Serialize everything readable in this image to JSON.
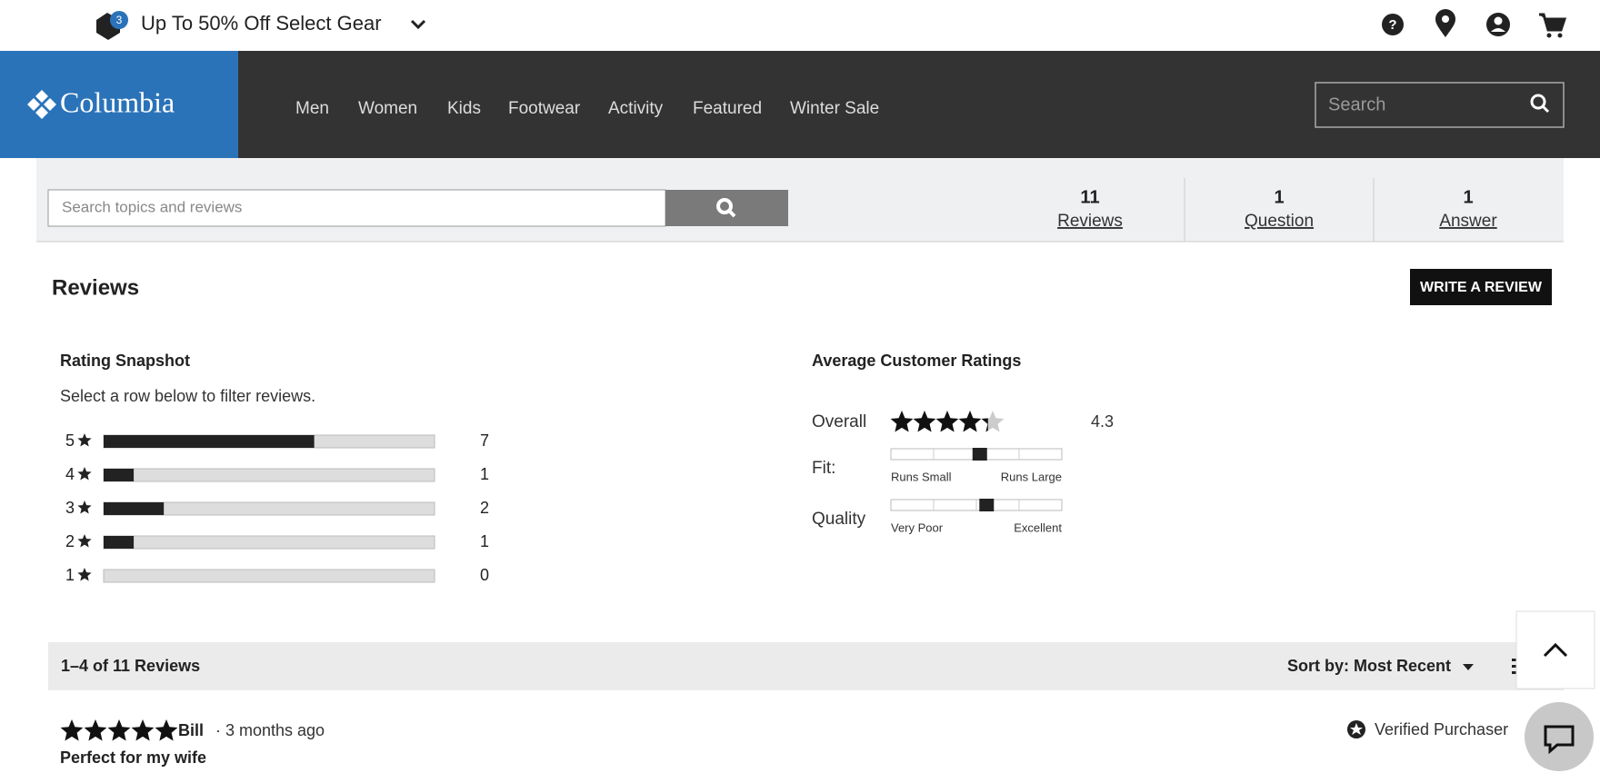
{
  "promo": {
    "badge": "3",
    "text": "Up To 50% Off Select Gear"
  },
  "nav": {
    "brand": "Columbia",
    "links": [
      "Men",
      "Women",
      "Kids",
      "Footwear",
      "Activity",
      "Featured",
      "Winter Sale"
    ],
    "search_placeholder": "Search"
  },
  "review_search": {
    "placeholder": "Search topics and reviews"
  },
  "stats": [
    {
      "count": 11,
      "label": "Reviews"
    },
    {
      "count": 1,
      "label": "Question"
    },
    {
      "count": 1,
      "label": "Answer"
    }
  ],
  "reviews_header": {
    "title": "Reviews",
    "button": "WRITE A REVIEW"
  },
  "snapshot": {
    "title": "Rating Snapshot",
    "subtitle": "Select a row below to filter reviews.",
    "rows": [
      {
        "stars": 5,
        "count": 7
      },
      {
        "stars": 4,
        "count": 1
      },
      {
        "stars": 3,
        "count": 2
      },
      {
        "stars": 2,
        "count": 1
      },
      {
        "stars": 1,
        "count": 0
      }
    ]
  },
  "averages": {
    "title": "Average Customer Ratings",
    "overall": {
      "label": "Overall",
      "value": 4.3
    },
    "sliders": [
      {
        "label": "Fit:",
        "low": "Runs Small",
        "high": "Runs Large",
        "position": 0.52
      },
      {
        "label": "Quality",
        "low": "Very Poor",
        "high": "Excellent",
        "position": 0.56
      }
    ]
  },
  "list_bar": {
    "range_text": "1–4 of 11 Reviews",
    "sort_label": "Sort by: Most Recent"
  },
  "review": {
    "rating": 5,
    "author": "Bill",
    "age": "· 3 months ago",
    "title": "Perfect for my wife",
    "badge": "Verified Purchaser"
  }
}
